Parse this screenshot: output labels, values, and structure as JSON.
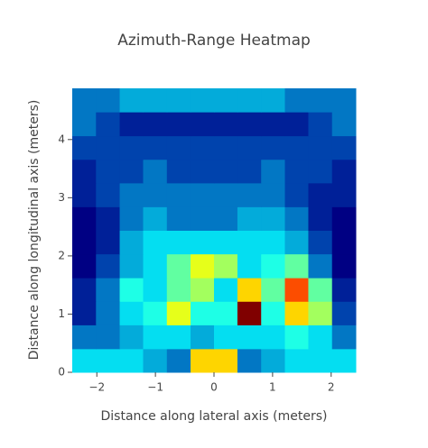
{
  "chart_data": {
    "type": "heatmap",
    "title": "Azimuth-Range Heatmap",
    "x_label": "Distance along lateral axis (meters)",
    "y_label": "Distance along longitudinal axis (meters)",
    "x": [
      -2.22,
      -1.81,
      -1.41,
      -1.01,
      -0.6,
      -0.2,
      0.2,
      0.6,
      1.01,
      1.41,
      1.81,
      2.22
    ],
    "y": [
      0.2,
      0.61,
      1.02,
      1.42,
      1.83,
      2.24,
      2.64,
      3.05,
      3.46,
      3.86,
      4.27,
      4.68
    ],
    "z": [
      [
        0.3,
        0.3,
        0.3,
        0.25,
        0.2,
        0.55,
        0.55,
        0.2,
        0.25,
        0.3,
        0.3,
        0.3
      ],
      [
        0.2,
        0.2,
        0.25,
        0.3,
        0.3,
        0.25,
        0.3,
        0.3,
        0.3,
        0.35,
        0.3,
        0.2
      ],
      [
        0.1,
        0.2,
        0.3,
        0.35,
        0.5,
        0.35,
        0.35,
        0.8,
        0.35,
        0.55,
        0.45,
        0.15
      ],
      [
        0.1,
        0.2,
        0.35,
        0.3,
        0.4,
        0.45,
        0.3,
        0.55,
        0.4,
        0.65,
        0.4,
        0.1
      ],
      [
        0.05,
        0.15,
        0.25,
        0.3,
        0.4,
        0.5,
        0.45,
        0.3,
        0.35,
        0.4,
        0.2,
        0.05
      ],
      [
        0.05,
        0.1,
        0.25,
        0.3,
        0.3,
        0.3,
        0.3,
        0.3,
        0.3,
        0.25,
        0.15,
        0.05
      ],
      [
        0.05,
        0.1,
        0.2,
        0.25,
        0.2,
        0.2,
        0.2,
        0.25,
        0.25,
        0.2,
        0.1,
        0.05
      ],
      [
        0.1,
        0.15,
        0.2,
        0.2,
        0.2,
        0.2,
        0.2,
        0.2,
        0.2,
        0.15,
        0.1,
        0.1
      ],
      [
        0.1,
        0.15,
        0.15,
        0.2,
        0.15,
        0.15,
        0.15,
        0.15,
        0.2,
        0.15,
        0.15,
        0.1
      ],
      [
        0.15,
        0.15,
        0.15,
        0.15,
        0.15,
        0.15,
        0.15,
        0.15,
        0.15,
        0.15,
        0.15,
        0.15
      ],
      [
        0.2,
        0.15,
        0.1,
        0.1,
        0.1,
        0.1,
        0.1,
        0.1,
        0.1,
        0.1,
        0.15,
        0.2
      ],
      [
        0.2,
        0.2,
        0.25,
        0.25,
        0.25,
        0.25,
        0.25,
        0.25,
        0.25,
        0.2,
        0.2,
        0.2
      ]
    ],
    "colorscale": [
      [
        0,
        "#000083"
      ],
      [
        0.125,
        "#003caa"
      ],
      [
        0.375,
        "#05ffff"
      ],
      [
        0.625,
        "#ffff00"
      ],
      [
        0.875,
        "#fa0000"
      ],
      [
        1,
        "#800000"
      ]
    ],
    "xlim": [
      -2.42,
      2.42
    ],
    "xticks": [
      {
        "value": -2,
        "label": "−2"
      },
      {
        "value": -1,
        "label": "−1"
      },
      0,
      1,
      2
    ],
    "ylim": [
      0,
      4.88
    ],
    "yticks": [
      0,
      1,
      2,
      3,
      4
    ]
  }
}
